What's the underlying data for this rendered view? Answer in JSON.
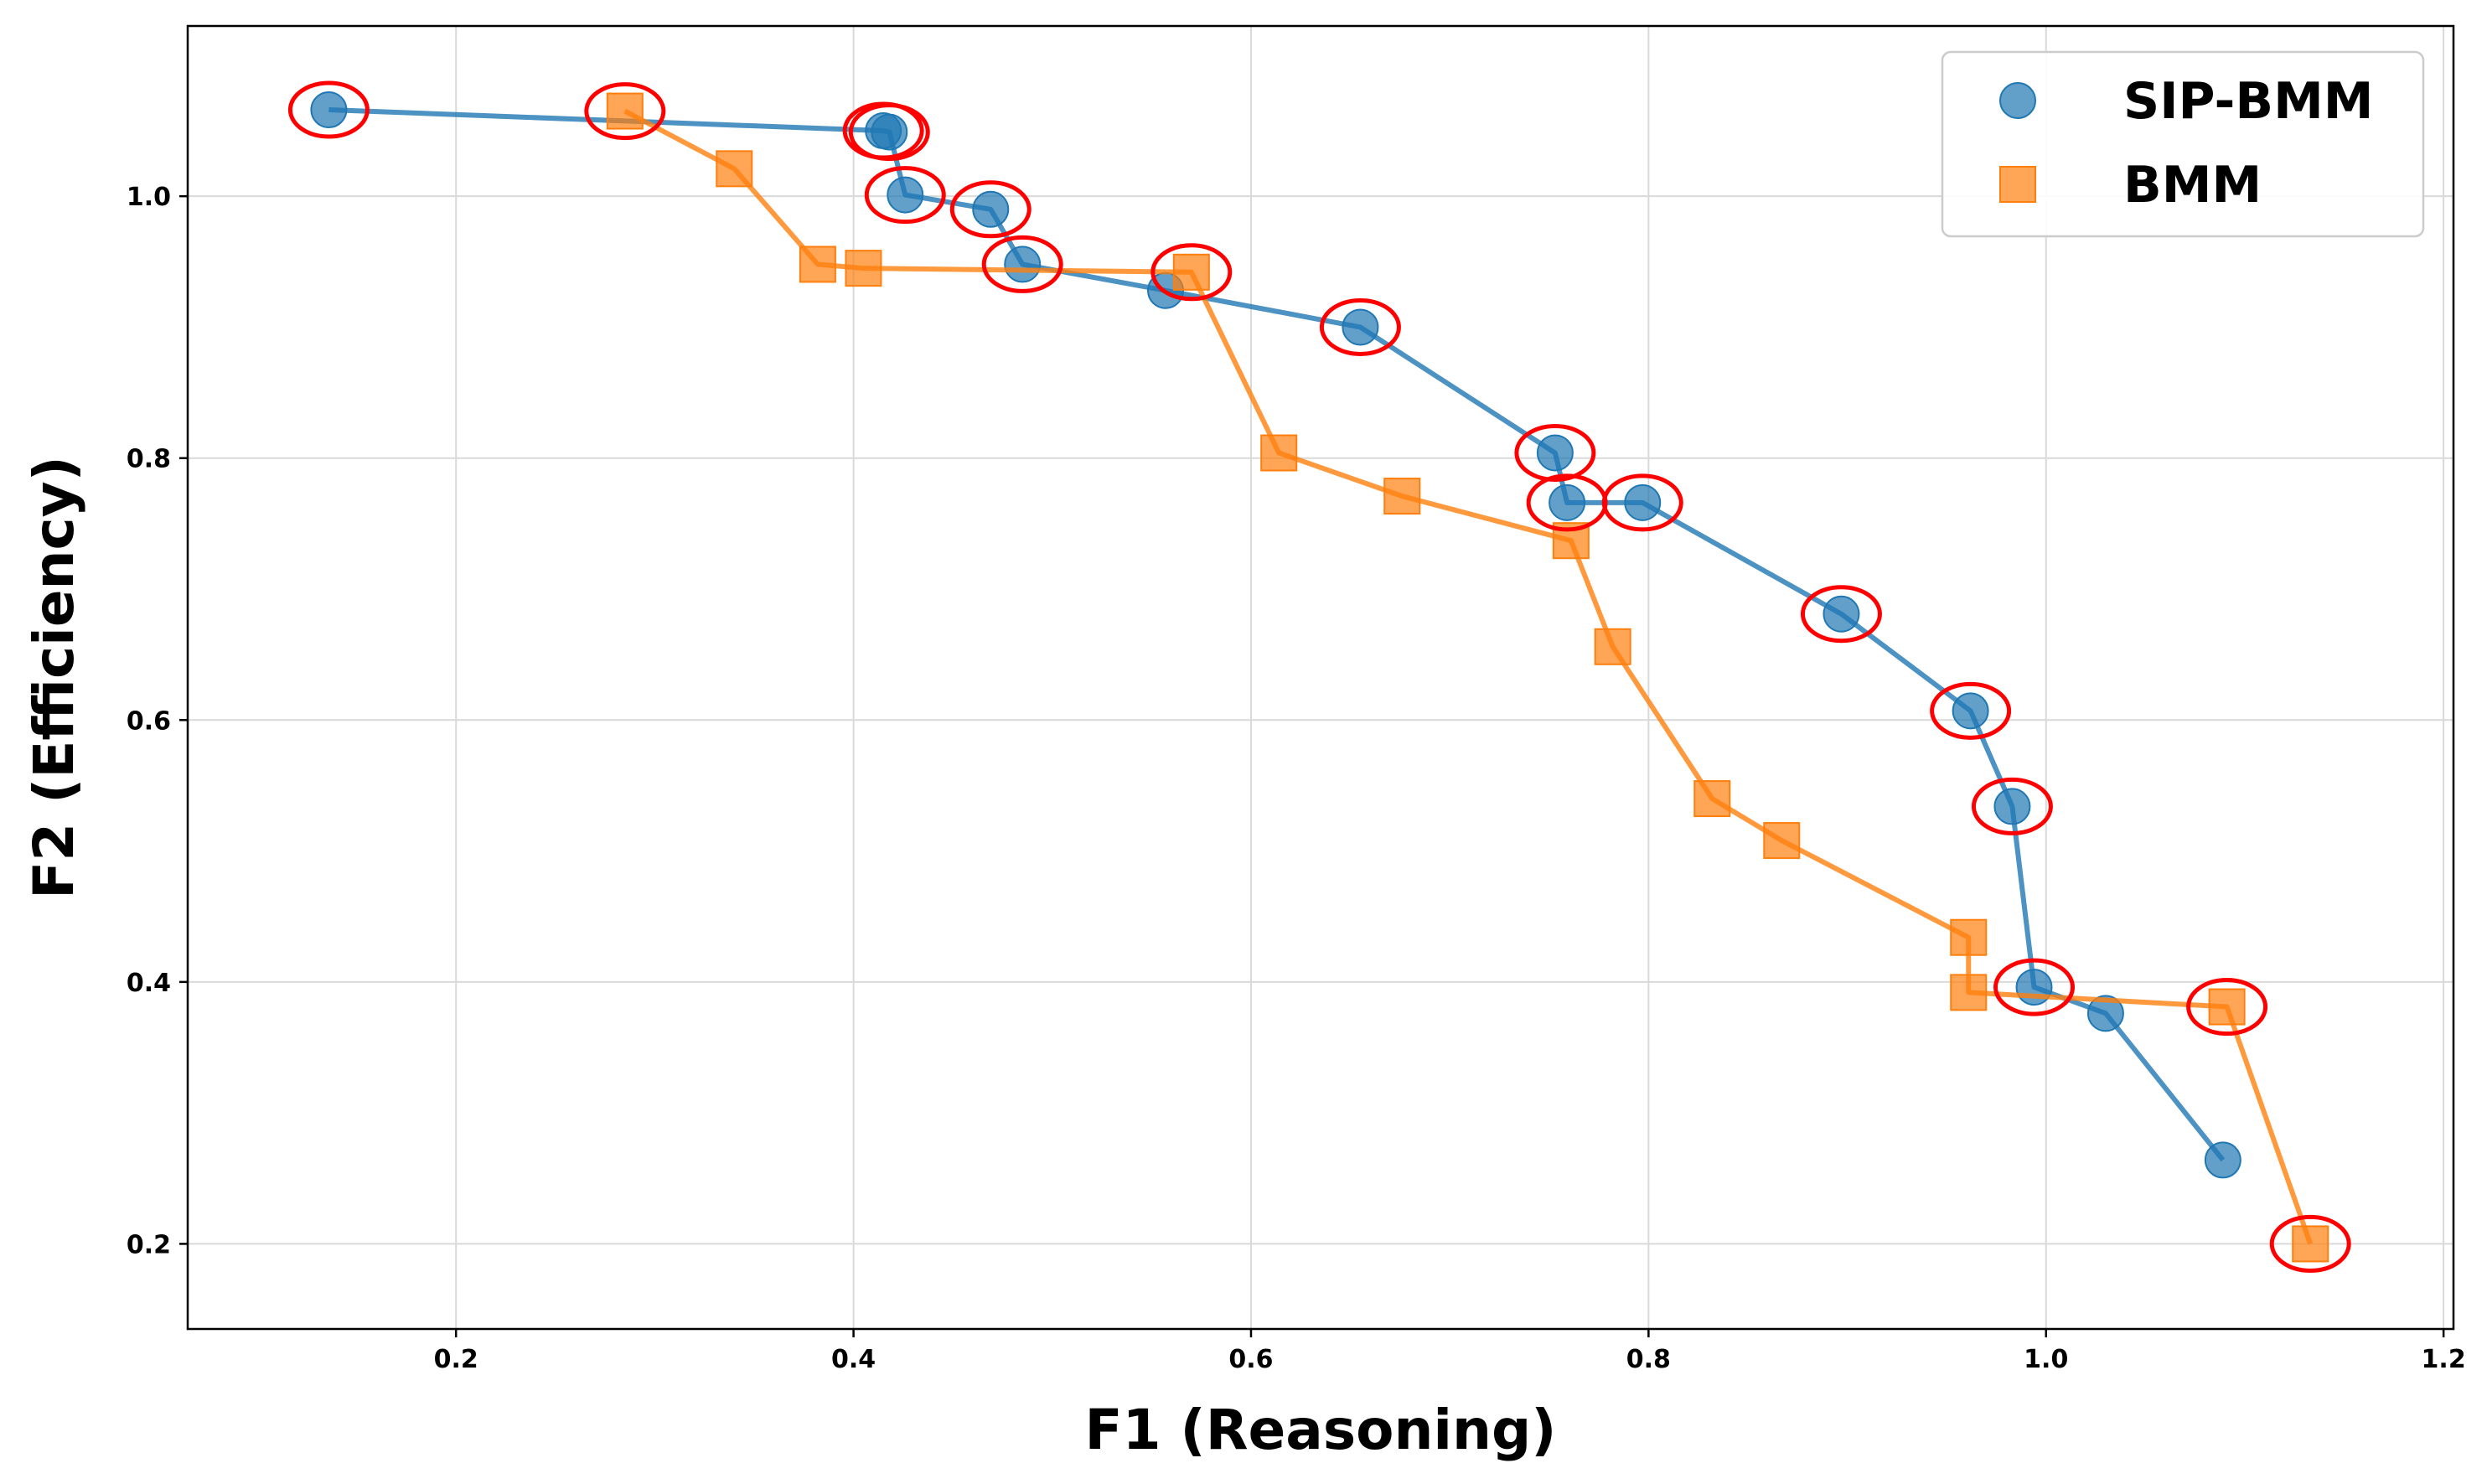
{
  "chart_data": {
    "type": "line",
    "title": "",
    "xlabel": "F1 (Reasoning)",
    "ylabel": "F2 (Efficiency)",
    "xlim": [
      0.065,
      1.205
    ],
    "ylim": [
      0.135,
      1.13
    ],
    "xticks": [
      0.2,
      0.4,
      0.6,
      0.8,
      1.0,
      1.2
    ],
    "yticks": [
      0.2,
      0.4,
      0.6,
      0.8,
      1.0
    ],
    "xtick_labels": [
      "0.2",
      "0.4",
      "0.6",
      "0.8",
      "1.0",
      "1.2"
    ],
    "ytick_labels": [
      "0.2",
      "0.4",
      "0.6",
      "0.8",
      "1.0"
    ],
    "grid": true,
    "legend_position": "top-right",
    "series": [
      {
        "name": "SIP-BMM",
        "marker": "circle",
        "color": "#1f77b4",
        "points": [
          {
            "x": 0.136,
            "y": 1.066,
            "highlighted": true
          },
          {
            "x": 0.415,
            "y": 1.05,
            "highlighted": true
          },
          {
            "x": 0.418,
            "y": 1.049,
            "highlighted": true
          },
          {
            "x": 0.426,
            "y": 1.001,
            "highlighted": true
          },
          {
            "x": 0.469,
            "y": 0.99,
            "highlighted": true
          },
          {
            "x": 0.485,
            "y": 0.948,
            "highlighted": true
          },
          {
            "x": 0.557,
            "y": 0.928,
            "highlighted": false
          },
          {
            "x": 0.655,
            "y": 0.9,
            "highlighted": true
          },
          {
            "x": 0.753,
            "y": 0.804,
            "highlighted": true
          },
          {
            "x": 0.759,
            "y": 0.766,
            "highlighted": true
          },
          {
            "x": 0.797,
            "y": 0.766,
            "highlighted": true
          },
          {
            "x": 0.897,
            "y": 0.681,
            "highlighted": true
          },
          {
            "x": 0.962,
            "y": 0.607,
            "highlighted": true
          },
          {
            "x": 0.983,
            "y": 0.534,
            "highlighted": true
          },
          {
            "x": 0.994,
            "y": 0.396,
            "highlighted": true
          },
          {
            "x": 1.03,
            "y": 0.376,
            "highlighted": false
          },
          {
            "x": 1.089,
            "y": 0.264,
            "highlighted": false
          }
        ]
      },
      {
        "name": "BMM",
        "marker": "square",
        "color": "#ff7f0e",
        "points": [
          {
            "x": 0.285,
            "y": 1.065,
            "highlighted": true
          },
          {
            "x": 0.34,
            "y": 1.021,
            "highlighted": false
          },
          {
            "x": 0.382,
            "y": 0.948,
            "highlighted": false
          },
          {
            "x": 0.405,
            "y": 0.945,
            "highlighted": false
          },
          {
            "x": 0.57,
            "y": 0.942,
            "highlighted": true
          },
          {
            "x": 0.614,
            "y": 0.804,
            "highlighted": false
          },
          {
            "x": 0.676,
            "y": 0.771,
            "highlighted": false
          },
          {
            "x": 0.761,
            "y": 0.737,
            "highlighted": false
          },
          {
            "x": 0.782,
            "y": 0.656,
            "highlighted": false
          },
          {
            "x": 0.832,
            "y": 0.54,
            "highlighted": false
          },
          {
            "x": 0.867,
            "y": 0.508,
            "highlighted": false
          },
          {
            "x": 0.961,
            "y": 0.434,
            "highlighted": false
          },
          {
            "x": 0.961,
            "y": 0.392,
            "highlighted": false
          },
          {
            "x": 1.091,
            "y": 0.381,
            "highlighted": true
          },
          {
            "x": 1.133,
            "y": 0.2,
            "highlighted": true
          }
        ]
      }
    ],
    "highlight_color": "#ff0000"
  }
}
